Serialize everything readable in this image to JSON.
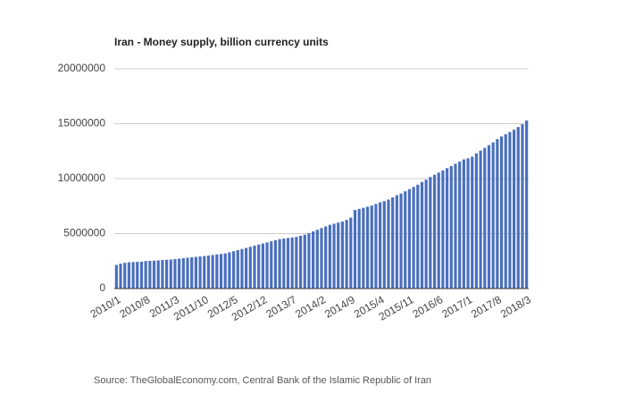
{
  "chart_data": {
    "type": "bar",
    "title": "Iran - Money supply, billion currency units",
    "source": "Source: TheGlobalEconomy.com, Central Bank of the Islamic Republic of Iran",
    "categories": [
      "2010/1",
      null,
      null,
      null,
      null,
      null,
      null,
      "2010/8",
      null,
      null,
      null,
      null,
      null,
      null,
      "2011/3",
      null,
      null,
      null,
      null,
      null,
      null,
      "2011/10",
      null,
      null,
      null,
      null,
      null,
      null,
      "2012/5",
      null,
      null,
      null,
      null,
      null,
      null,
      "2012/12",
      null,
      null,
      null,
      null,
      null,
      null,
      "2013/7",
      null,
      null,
      null,
      null,
      null,
      null,
      "2014/2",
      null,
      null,
      null,
      null,
      null,
      null,
      "2014/9",
      null,
      null,
      null,
      null,
      null,
      null,
      "2015/4",
      null,
      null,
      null,
      null,
      null,
      null,
      "2015/11",
      null,
      null,
      null,
      null,
      null,
      null,
      "2016/6",
      null,
      null,
      null,
      null,
      null,
      null,
      "2017/1",
      null,
      null,
      null,
      null,
      null,
      null,
      "2017/8",
      null,
      null,
      null,
      null,
      null,
      null,
      "2018/3"
    ],
    "values": [
      2150000,
      2260000,
      2340000,
      2390000,
      2410000,
      2430000,
      2450000,
      2500000,
      2520000,
      2540000,
      2560000,
      2600000,
      2620000,
      2640000,
      2680000,
      2720000,
      2760000,
      2800000,
      2840000,
      2880000,
      2920000,
      2960000,
      3000000,
      3050000,
      3100000,
      3150000,
      3200000,
      3300000,
      3400000,
      3500000,
      3600000,
      3700000,
      3800000,
      3900000,
      4000000,
      4100000,
      4200000,
      4300000,
      4400000,
      4500000,
      4550000,
      4600000,
      4650000,
      4700000,
      4800000,
      4900000,
      5050000,
      5200000,
      5350000,
      5500000,
      5650000,
      5800000,
      5900000,
      6000000,
      6100000,
      6250000,
      6450000,
      7150000,
      7250000,
      7350000,
      7450000,
      7550000,
      7700000,
      7850000,
      7950000,
      8100000,
      8300000,
      8500000,
      8650000,
      8850000,
      9050000,
      9250000,
      9450000,
      9700000,
      9900000,
      10150000,
      10350000,
      10550000,
      10750000,
      10950000,
      11150000,
      11350000,
      11550000,
      11750000,
      11850000,
      12000000,
      12300000,
      12550000,
      12800000,
      13050000,
      13300000,
      13600000,
      13850000,
      14050000,
      14250000,
      14450000,
      14700000,
      14950000,
      15300000
    ],
    "color": "#4a6fbf",
    "ylim": [
      0,
      20000000
    ],
    "yticks": [
      0,
      5000000,
      10000000,
      15000000,
      20000000
    ],
    "grid": true
  }
}
